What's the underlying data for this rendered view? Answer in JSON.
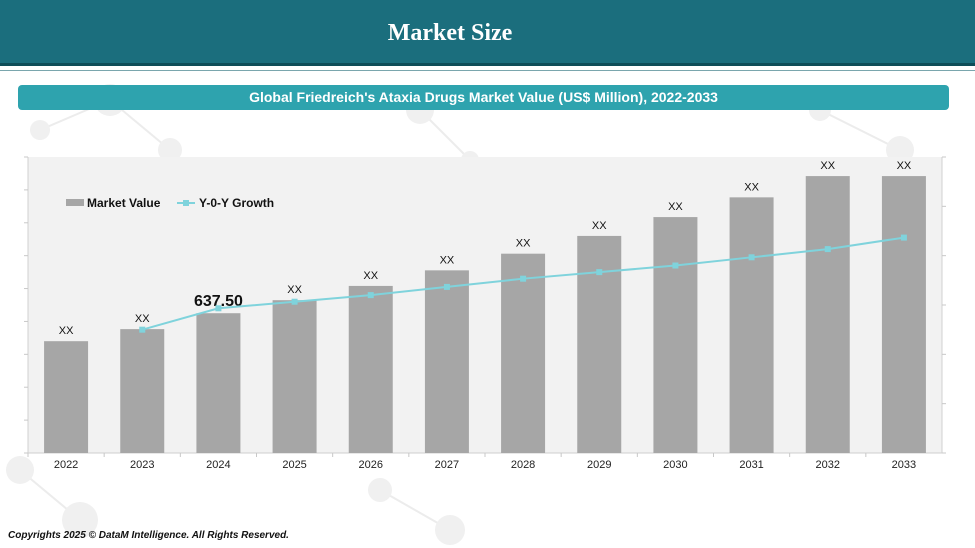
{
  "header": {
    "title": "Market Size"
  },
  "footer": {
    "copyright": "Copyrights 2025 © DataM Intelligence. All Rights Reserved."
  },
  "chart_data": {
    "type": "bar",
    "title": "Global Friedreich's Ataxia Drugs Market Value (US$ Million), 2022-2033",
    "categories": [
      "2022",
      "2023",
      "2024",
      "2025",
      "2026",
      "2027",
      "2028",
      "2029",
      "2030",
      "2031",
      "2032",
      "2033"
    ],
    "series": [
      {
        "name": "Market Value",
        "type": "bar",
        "values": [
          510,
          565,
          637.5,
          697,
          762,
          833,
          909,
          990,
          1076,
          1166,
          1263,
          1263
        ],
        "data_labels": [
          "XX",
          "XX",
          "637.50",
          "XX",
          "XX",
          "XX",
          "XX",
          "XX",
          "XX",
          "XX",
          "XX",
          "XX"
        ]
      },
      {
        "name": "Y-0-Y Growth",
        "type": "line",
        "values": [
          null,
          7.5,
          8.8,
          9.2,
          9.6,
          10.1,
          10.6,
          11.0,
          11.4,
          11.9,
          12.4,
          13.1
        ]
      }
    ],
    "ylim": [
      0,
      1350
    ],
    "y2lim": [
      0,
      18
    ],
    "grid": false,
    "legend_position": "top-left",
    "colors": {
      "bar": "#a6a6a6",
      "line": "#7fd3dc",
      "plot_bg": "#f2f2f2"
    }
  }
}
